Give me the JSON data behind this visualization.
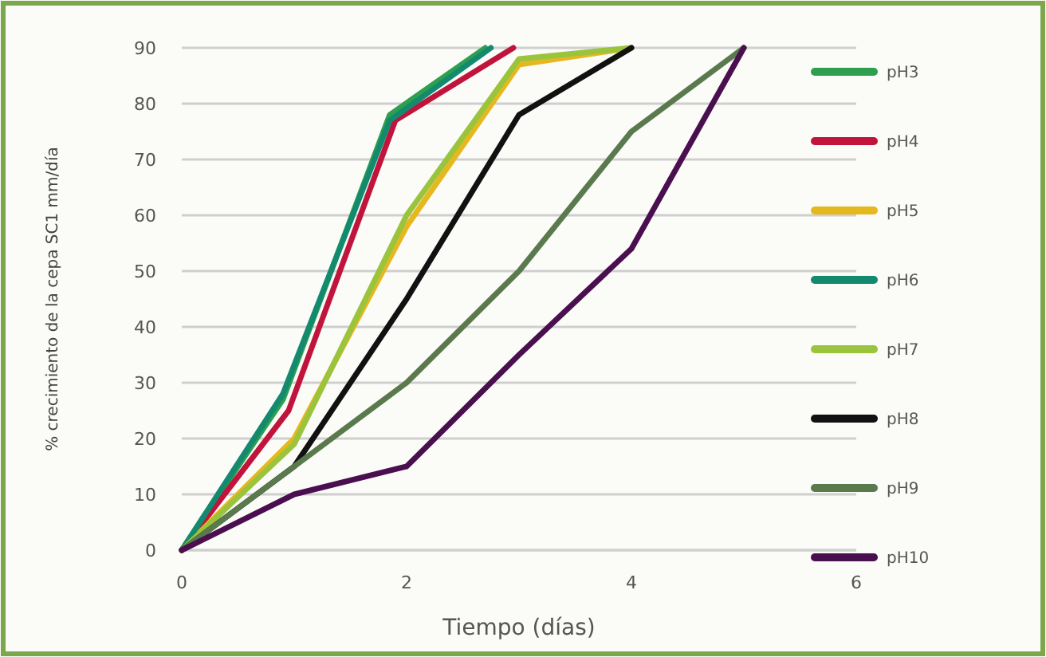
{
  "chart_data": {
    "type": "line",
    "xlabel": "Tiempo (días)",
    "ylabel": "% crecimiento de la cepa SC1 mm/día",
    "xlim": [
      0,
      6
    ],
    "xticks": [
      0,
      2,
      4,
      6
    ],
    "ylim": [
      0,
      90
    ],
    "yticks": [
      0,
      10,
      20,
      30,
      40,
      50,
      60,
      70,
      80,
      90
    ],
    "grid": "y",
    "legend": "right",
    "marker": "none",
    "line_style": "solid",
    "series": [
      {
        "name": "pH3",
        "color": "#2e9e4f",
        "x": [
          0,
          0.9,
          1.85,
          2.7
        ],
        "values": [
          0,
          27,
          78,
          90
        ]
      },
      {
        "name": "pH4",
        "color": "#c0143c",
        "x": [
          0,
          0.95,
          1.9,
          2.95
        ],
        "values": [
          0,
          25,
          77,
          90
        ]
      },
      {
        "name": "pH5",
        "color": "#e6b820",
        "x": [
          0,
          1,
          2,
          3,
          4
        ],
        "values": [
          0,
          20,
          58,
          87,
          90
        ]
      },
      {
        "name": "pH6",
        "color": "#138a6e",
        "x": [
          0,
          0.9,
          1.85,
          2.75
        ],
        "values": [
          0,
          28,
          77,
          90
        ]
      },
      {
        "name": "pH7",
        "color": "#9ac43c",
        "x": [
          0,
          1,
          2,
          3,
          4
        ],
        "values": [
          0,
          19,
          60,
          88,
          90
        ]
      },
      {
        "name": "pH8",
        "color": "#111111",
        "x": [
          0,
          1,
          2,
          3,
          4
        ],
        "values": [
          0,
          15,
          45,
          78,
          90
        ]
      },
      {
        "name": "pH9",
        "color": "#5a7a4e",
        "x": [
          0,
          1,
          2,
          3,
          4,
          5
        ],
        "values": [
          0,
          15,
          30,
          50,
          75,
          90
        ]
      },
      {
        "name": "pH10",
        "color": "#4a0f4e",
        "x": [
          0,
          1,
          2,
          3,
          4,
          5
        ],
        "values": [
          0,
          10,
          15,
          35,
          54,
          90
        ]
      }
    ]
  }
}
